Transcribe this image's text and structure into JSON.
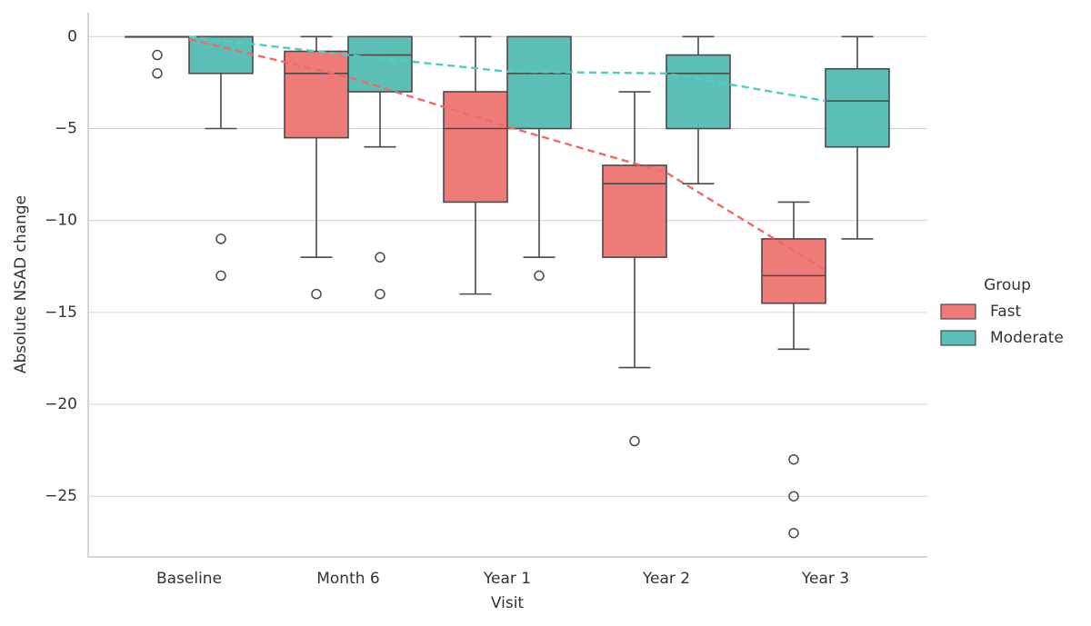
{
  "chart_data": {
    "type": "box",
    "x_label": "Visit",
    "y_label": "Absolute NSAD change",
    "legend_title": "Group",
    "categories": [
      "Baseline",
      "Month 6",
      "Year 1",
      "Year 2",
      "Year 3"
    ],
    "ylim": [
      -28.3,
      1.3
    ],
    "yticks": [
      {
        "value": 0,
        "label": "0"
      },
      {
        "value": -5,
        "label": "−5"
      },
      {
        "value": -10,
        "label": "−10"
      },
      {
        "value": -15,
        "label": "−15"
      },
      {
        "value": -20,
        "label": "−20"
      },
      {
        "value": -25,
        "label": "−25"
      }
    ],
    "grid": true,
    "legend": "right",
    "series": [
      {
        "name": "Fast",
        "color": "#ef7b78",
        "line_color": "#ef6a66",
        "boxes": [
          {
            "min": 0,
            "q1": 0,
            "median": 0,
            "q3": 0,
            "max": 0,
            "outliers": [
              -1,
              -2
            ]
          },
          {
            "min": -12,
            "q1": -5.5,
            "median": -2,
            "q3": -0.8,
            "max": 0,
            "outliers": [
              -14
            ]
          },
          {
            "min": -14,
            "q1": -9,
            "median": -5,
            "q3": -3,
            "max": 0,
            "outliers": []
          },
          {
            "min": -18,
            "q1": -12,
            "median": -8,
            "q3": -7,
            "max": -3,
            "outliers": [
              -22
            ]
          },
          {
            "min": -17,
            "q1": -14.5,
            "median": -13,
            "q3": -11,
            "max": -9,
            "outliers": [
              -23,
              -25,
              -27
            ]
          }
        ],
        "means": [
          -0.15,
          -2.2,
          -4.9,
          -7.4,
          -12.7
        ]
      },
      {
        "name": "Moderate",
        "color": "#5bbfb5",
        "line_color": "#4fcdc3",
        "boxes": [
          {
            "min": -5,
            "q1": -2,
            "median": 0,
            "q3": 0,
            "max": 0,
            "outliers": [
              -11,
              -13
            ]
          },
          {
            "min": -6,
            "q1": -3,
            "median": -1,
            "q3": 0,
            "max": 0,
            "outliers": [
              -12,
              -14
            ]
          },
          {
            "min": -12,
            "q1": -5,
            "median": -2,
            "q3": 0,
            "max": 0,
            "outliers": [
              -13
            ]
          },
          {
            "min": -8,
            "q1": -5,
            "median": -2,
            "q3": -1,
            "max": 0,
            "outliers": []
          },
          {
            "min": -11,
            "q1": -6,
            "median": -3.5,
            "q3": -1.75,
            "max": 0,
            "outliers": []
          }
        ],
        "means": [
          0,
          -1,
          -1.9,
          -2,
          -3.5
        ]
      }
    ]
  }
}
